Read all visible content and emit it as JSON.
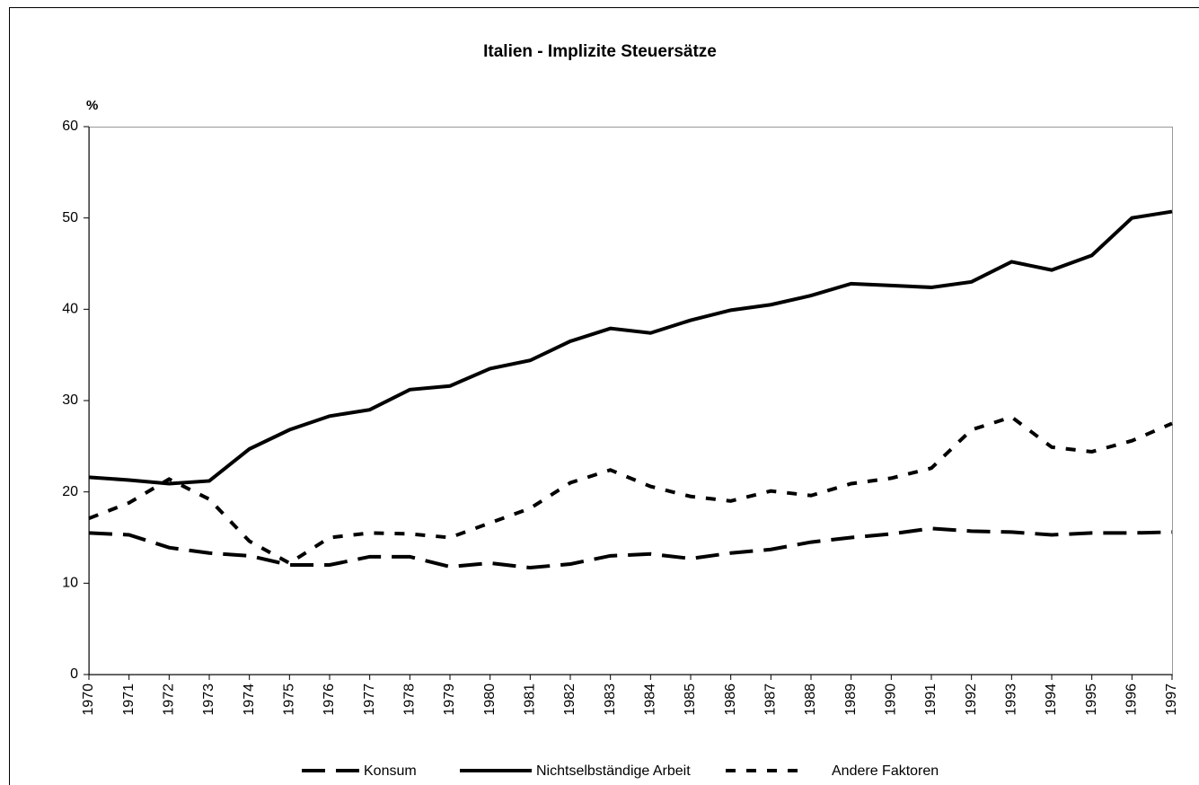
{
  "chart_data": {
    "type": "line",
    "title": "Italien - Implizite Steuersätze",
    "y_label": "%",
    "categories": [
      "1970",
      "1971",
      "1972",
      "1973",
      "1974",
      "1975",
      "1976",
      "1977",
      "1978",
      "1979",
      "1980",
      "1981",
      "1982",
      "1983",
      "1984",
      "1985",
      "1986",
      "1987",
      "1988",
      "1989",
      "1990",
      "1991",
      "1992",
      "1993",
      "1994",
      "1995",
      "1996",
      "1997"
    ],
    "series": [
      {
        "name": "Konsum",
        "color": "#000000",
        "dash": "long-dash",
        "values": [
          15.5,
          15.3,
          13.9,
          13.3,
          13.0,
          12.0,
          12.0,
          12.9,
          12.9,
          11.8,
          12.2,
          11.7,
          12.1,
          13.0,
          13.2,
          12.7,
          13.3,
          13.7,
          14.5,
          15.0,
          15.4,
          16.0,
          15.7,
          15.6,
          15.3,
          15.5,
          15.5,
          15.6
        ]
      },
      {
        "name": "Nichtselbständige Arbeit",
        "color": "#000000",
        "dash": "solid",
        "values": [
          21.6,
          21.3,
          20.9,
          21.2,
          24.7,
          26.8,
          28.3,
          29.0,
          31.2,
          31.6,
          33.5,
          34.4,
          36.5,
          37.9,
          37.4,
          38.8,
          39.9,
          40.5,
          41.5,
          42.8,
          42.6,
          42.4,
          43.0,
          45.2,
          44.3,
          45.9,
          50.0,
          50.7
        ]
      },
      {
        "name": "Andere Faktoren",
        "color": "#000000",
        "dash": "short-dash",
        "values": [
          17.1,
          18.8,
          21.4,
          19.2,
          14.6,
          12.2,
          15.0,
          15.5,
          15.4,
          15.0,
          16.6,
          18.2,
          21.0,
          22.4,
          20.6,
          19.5,
          19.0,
          20.1,
          19.6,
          20.9,
          21.5,
          22.6,
          26.8,
          28.2,
          24.9,
          24.4,
          25.6,
          27.5
        ]
      }
    ],
    "ylim": [
      0,
      60
    ],
    "yticks": [
      0,
      10,
      20,
      30,
      40,
      50,
      60
    ],
    "grid": false,
    "legend": "bottom"
  }
}
